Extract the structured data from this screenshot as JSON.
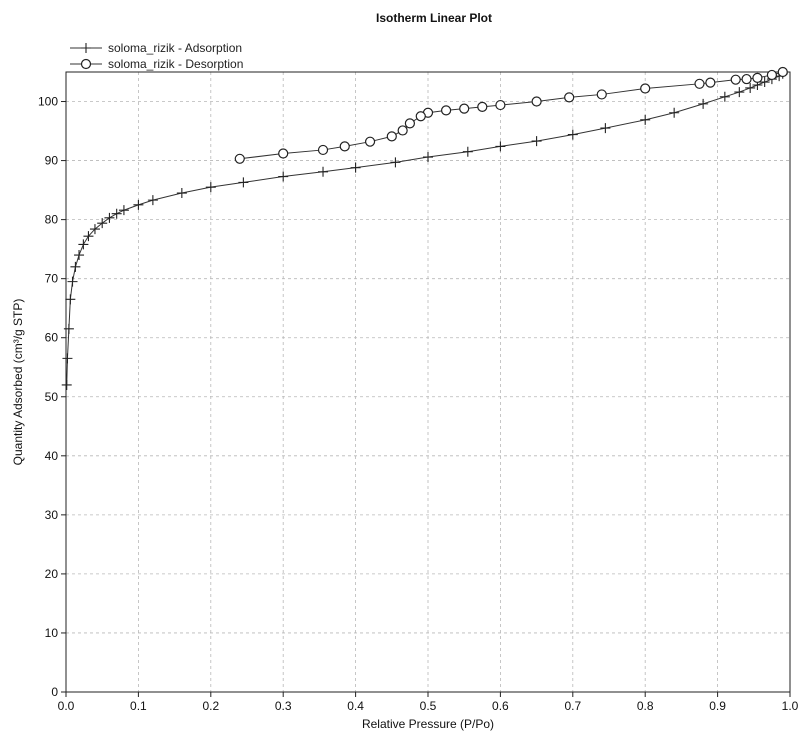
{
  "chart_data": {
    "type": "line",
    "title": "Isotherm Linear Plot",
    "xlabel": "Relative Pressure (P/Po)",
    "ylabel": "Quantity Adsorbed (cm³/g STP)",
    "xlim": [
      0.0,
      1.0
    ],
    "ylim": [
      0,
      105
    ],
    "xticks": [
      0.0,
      0.1,
      0.2,
      0.3,
      0.4,
      0.5,
      0.6,
      0.7,
      0.8,
      0.9,
      1.0
    ],
    "xtick_labels": [
      "0.0",
      "0.1",
      "0.2",
      "0.3",
      "0.4",
      "0.5",
      "0.6",
      "0.7",
      "0.8",
      "0.9",
      "1.0"
    ],
    "yticks": [
      0,
      10,
      20,
      30,
      40,
      50,
      60,
      70,
      80,
      90,
      100
    ],
    "ytick_labels": [
      "0",
      "10",
      "20",
      "30",
      "40",
      "50",
      "60",
      "70",
      "80",
      "90",
      "100"
    ],
    "grid": true,
    "legend_position": "top-left",
    "series": [
      {
        "name": "soloma_rizik - Adsorption",
        "marker": "plus",
        "x": [
          0.001,
          0.002,
          0.004,
          0.006,
          0.009,
          0.013,
          0.018,
          0.024,
          0.031,
          0.04,
          0.05,
          0.06,
          0.07,
          0.08,
          0.1,
          0.12,
          0.16,
          0.2,
          0.245,
          0.3,
          0.355,
          0.4,
          0.455,
          0.5,
          0.555,
          0.6,
          0.65,
          0.7,
          0.745,
          0.8,
          0.84,
          0.88,
          0.91,
          0.93,
          0.945,
          0.955,
          0.965,
          0.975,
          0.985,
          0.99
        ],
        "y": [
          52.0,
          56.5,
          61.5,
          66.5,
          69.5,
          72.0,
          74.0,
          75.8,
          77.2,
          78.4,
          79.4,
          80.3,
          81.0,
          81.6,
          82.5,
          83.3,
          84.5,
          85.5,
          86.3,
          87.3,
          88.1,
          88.8,
          89.7,
          90.6,
          91.5,
          92.4,
          93.3,
          94.4,
          95.5,
          96.9,
          98.1,
          99.6,
          100.8,
          101.6,
          102.3,
          102.8,
          103.3,
          103.8,
          104.3,
          104.7
        ]
      },
      {
        "name": "soloma_rizik - Desorption",
        "marker": "circle",
        "x": [
          0.99,
          0.975,
          0.955,
          0.94,
          0.925,
          0.89,
          0.875,
          0.8,
          0.74,
          0.695,
          0.65,
          0.6,
          0.575,
          0.55,
          0.525,
          0.5,
          0.49,
          0.475,
          0.465,
          0.45,
          0.42,
          0.385,
          0.355,
          0.3,
          0.24
        ],
        "y": [
          105.0,
          104.5,
          104.0,
          103.8,
          103.7,
          103.2,
          103.0,
          102.2,
          101.2,
          100.7,
          100.0,
          99.4,
          99.1,
          98.8,
          98.5,
          98.1,
          97.5,
          96.3,
          95.1,
          94.1,
          93.2,
          92.4,
          91.8,
          91.2,
          90.3
        ]
      }
    ]
  }
}
